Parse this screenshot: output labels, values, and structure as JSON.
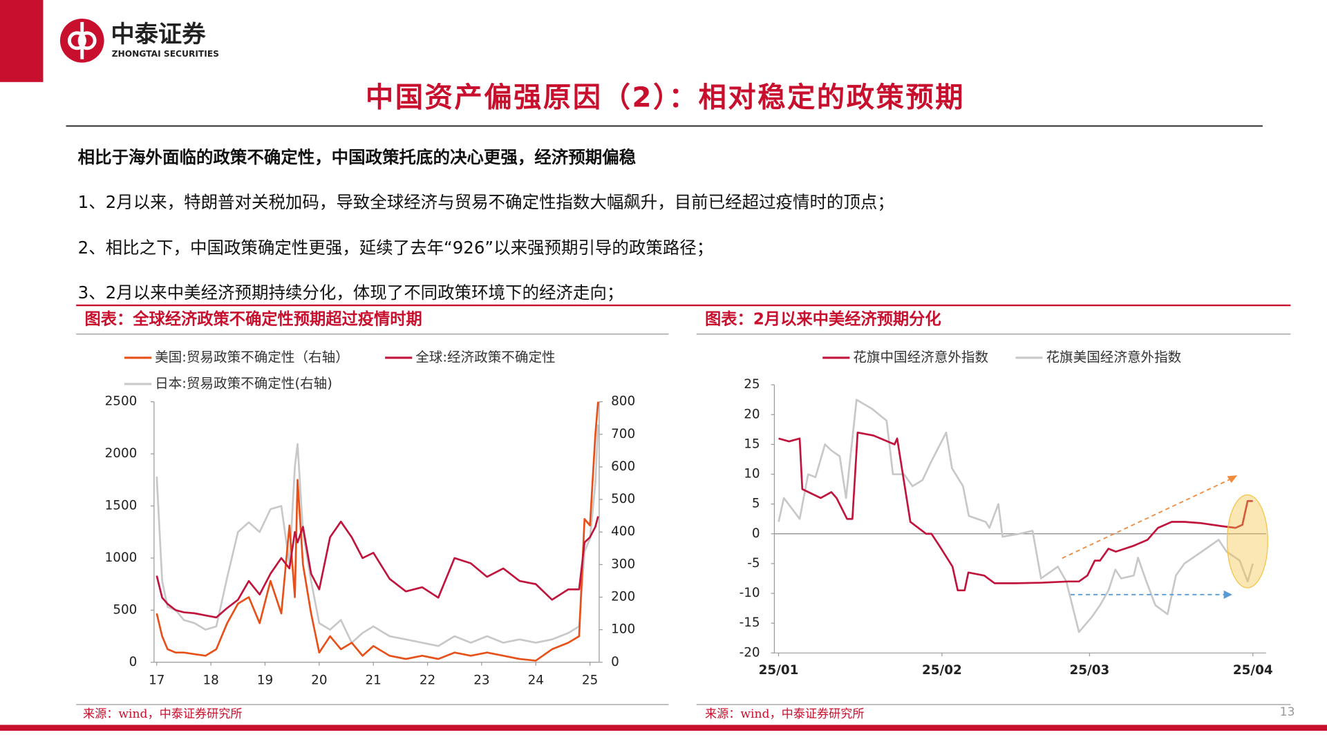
{
  "header": {
    "logo_cn": "中泰证券",
    "logo_en": "ZHONGTAI SECURITIES",
    "title": "中国资产偏强原因（2）：相对稳定的政策预期"
  },
  "body": {
    "lead": "相比于海外面临的政策不确定性，中国政策托底的决心更强，经济预期偏稳",
    "points": [
      "1、2月以来，特朗普对关税加码，导致全球经济与贸易不确定性指数大幅飙升，目前已经超过疫情时的顶点；",
      "2、相比之下，中国政策确定性更强，延续了去年“926”以来强预期引导的政策路径；",
      "3、2月以来中美经济预期持续分化，体现了不同政策环境下的经济走向；"
    ]
  },
  "page_number": "13",
  "chart_data": [
    {
      "type": "line",
      "title": "图表：全球经济政策不确定性预期超过疫情时期",
      "source": "来源：wind，中泰证券研究所",
      "x": [
        17.0,
        17.1,
        17.2,
        17.35,
        17.5,
        17.7,
        17.9,
        18.1,
        18.3,
        18.5,
        18.7,
        18.9,
        19.1,
        19.3,
        19.45,
        19.55,
        19.6,
        19.7,
        19.85,
        20.0,
        20.2,
        20.4,
        20.6,
        20.8,
        21.0,
        21.3,
        21.6,
        21.9,
        22.2,
        22.5,
        22.8,
        23.1,
        23.4,
        23.7,
        24.0,
        24.3,
        24.6,
        24.8,
        24.9,
        25.0,
        25.1,
        25.15
      ],
      "xlim": [
        16.95,
        25.17
      ],
      "xticks": [
        17,
        18,
        19,
        20,
        21,
        22,
        23,
        24,
        25
      ],
      "ylim": [
        0,
        2500
      ],
      "yticks": [
        0,
        500,
        1000,
        1500,
        2000,
        2500
      ],
      "y2lim": [
        0,
        800
      ],
      "y2ticks": [
        0,
        100,
        200,
        300,
        400,
        500,
        600,
        700,
        800
      ],
      "series": [
        {
          "name": "美国:贸易政策不确定性（右轴）",
          "color": "#e8501a",
          "axis": "y2",
          "values": [
            150,
            80,
            40,
            30,
            30,
            25,
            20,
            40,
            120,
            180,
            200,
            120,
            250,
            150,
            420,
            200,
            560,
            300,
            150,
            30,
            80,
            40,
            60,
            20,
            50,
            20,
            10,
            20,
            10,
            30,
            20,
            30,
            20,
            10,
            5,
            40,
            60,
            80,
            440,
            420,
            700,
            800
          ]
        },
        {
          "name": "全球:经济政策不确定性",
          "color": "#c0143c",
          "values": [
            830,
            620,
            560,
            500,
            480,
            470,
            450,
            430,
            520,
            600,
            780,
            650,
            850,
            1000,
            900,
            1250,
            1150,
            1300,
            850,
            700,
            1200,
            1350,
            1200,
            1000,
            1050,
            800,
            680,
            720,
            620,
            1000,
            950,
            820,
            900,
            780,
            750,
            600,
            700,
            700,
            1150,
            1200,
            1300,
            1400
          ]
        },
        {
          "name": "日本:贸易政策不确定性(右轴)",
          "color": "#c8c8c8",
          "axis": "y2",
          "values": [
            570,
            250,
            170,
            160,
            130,
            120,
            100,
            110,
            260,
            400,
            430,
            400,
            470,
            480,
            300,
            600,
            670,
            400,
            250,
            120,
            100,
            130,
            60,
            90,
            110,
            80,
            70,
            60,
            50,
            80,
            60,
            80,
            60,
            70,
            60,
            70,
            90,
            110,
            340,
            380,
            550,
            730
          ]
        }
      ]
    },
    {
      "type": "line",
      "title": "图表：2月以来中美经济预期分化",
      "source": "来源：wind，中泰证券研究所",
      "xlim": [
        -0.8,
        92.5
      ],
      "xticks": [
        {
          "value": 0,
          "label": "25/01"
        },
        {
          "value": 31,
          "label": "25/02"
        },
        {
          "value": 59,
          "label": "25/03"
        },
        {
          "value": 90,
          "label": "25/04"
        }
      ],
      "ylim": [
        -20,
        25
      ],
      "yticks": [
        -20,
        -15,
        -10,
        -5,
        0,
        5,
        10,
        15,
        20,
        25
      ],
      "series": [
        {
          "name": "花旗中国经济意外指数",
          "color": "#c0143c",
          "x": [
            0,
            2,
            4,
            4.5,
            8,
            10,
            11,
            13,
            14,
            15,
            18,
            22,
            22.5,
            25,
            28,
            29,
            30.5,
            33,
            34,
            35.3,
            36,
            39,
            41,
            45,
            50,
            55,
            57,
            58.6,
            60,
            61,
            62.6,
            64,
            67.4,
            70,
            72,
            74.6,
            77,
            80,
            84,
            86.7,
            88,
            89,
            90
          ],
          "values": [
            16,
            15.5,
            16,
            7.5,
            6,
            7,
            6,
            2.5,
            2.5,
            17,
            16.5,
            15,
            16,
            2,
            0,
            0,
            -2,
            -5.5,
            -9.5,
            -9.5,
            -6.5,
            -7,
            -8.3,
            -8.3,
            -8.2,
            -8,
            -8,
            -7,
            -4.5,
            -4.5,
            -2.5,
            -3,
            -2,
            -1,
            1,
            2,
            2,
            1.8,
            1.3,
            1,
            1.5,
            5.5,
            5.5
          ]
        },
        {
          "name": "花旗美国经济意外指数",
          "color": "#c8c8c8",
          "x": [
            0,
            1,
            4,
            5.6,
            7,
            8.8,
            10,
            11.6,
            12.8,
            14.8,
            17.7,
            20.5,
            21.7,
            23.8,
            25.4,
            27.3,
            28.9,
            31.8,
            32.9,
            35,
            36.1,
            39.3,
            40,
            41.7,
            42.5,
            45.7,
            48.2,
            49.8,
            53,
            54.6,
            57,
            59.4,
            61,
            62.6,
            63.9,
            65,
            67.4,
            68.2,
            69.8,
            71.5,
            73.8,
            75.4,
            77,
            80.3,
            83.5,
            85,
            87.5,
            89,
            90
          ],
          "values": [
            2,
            6,
            2.5,
            10,
            9.5,
            15,
            14,
            13,
            6,
            22.5,
            21,
            19,
            10,
            10,
            8,
            9,
            12,
            17,
            11,
            8,
            3,
            2,
            1,
            5,
            -0.5,
            0,
            0.5,
            -7.5,
            -5.5,
            -8,
            -16.5,
            -14,
            -12,
            -9.5,
            -6,
            -7.5,
            -7,
            -4,
            -8,
            -12,
            -13.5,
            -7,
            -5,
            -3,
            -1,
            -3,
            -4.5,
            -8,
            -5
          ]
        }
      ]
    }
  ]
}
